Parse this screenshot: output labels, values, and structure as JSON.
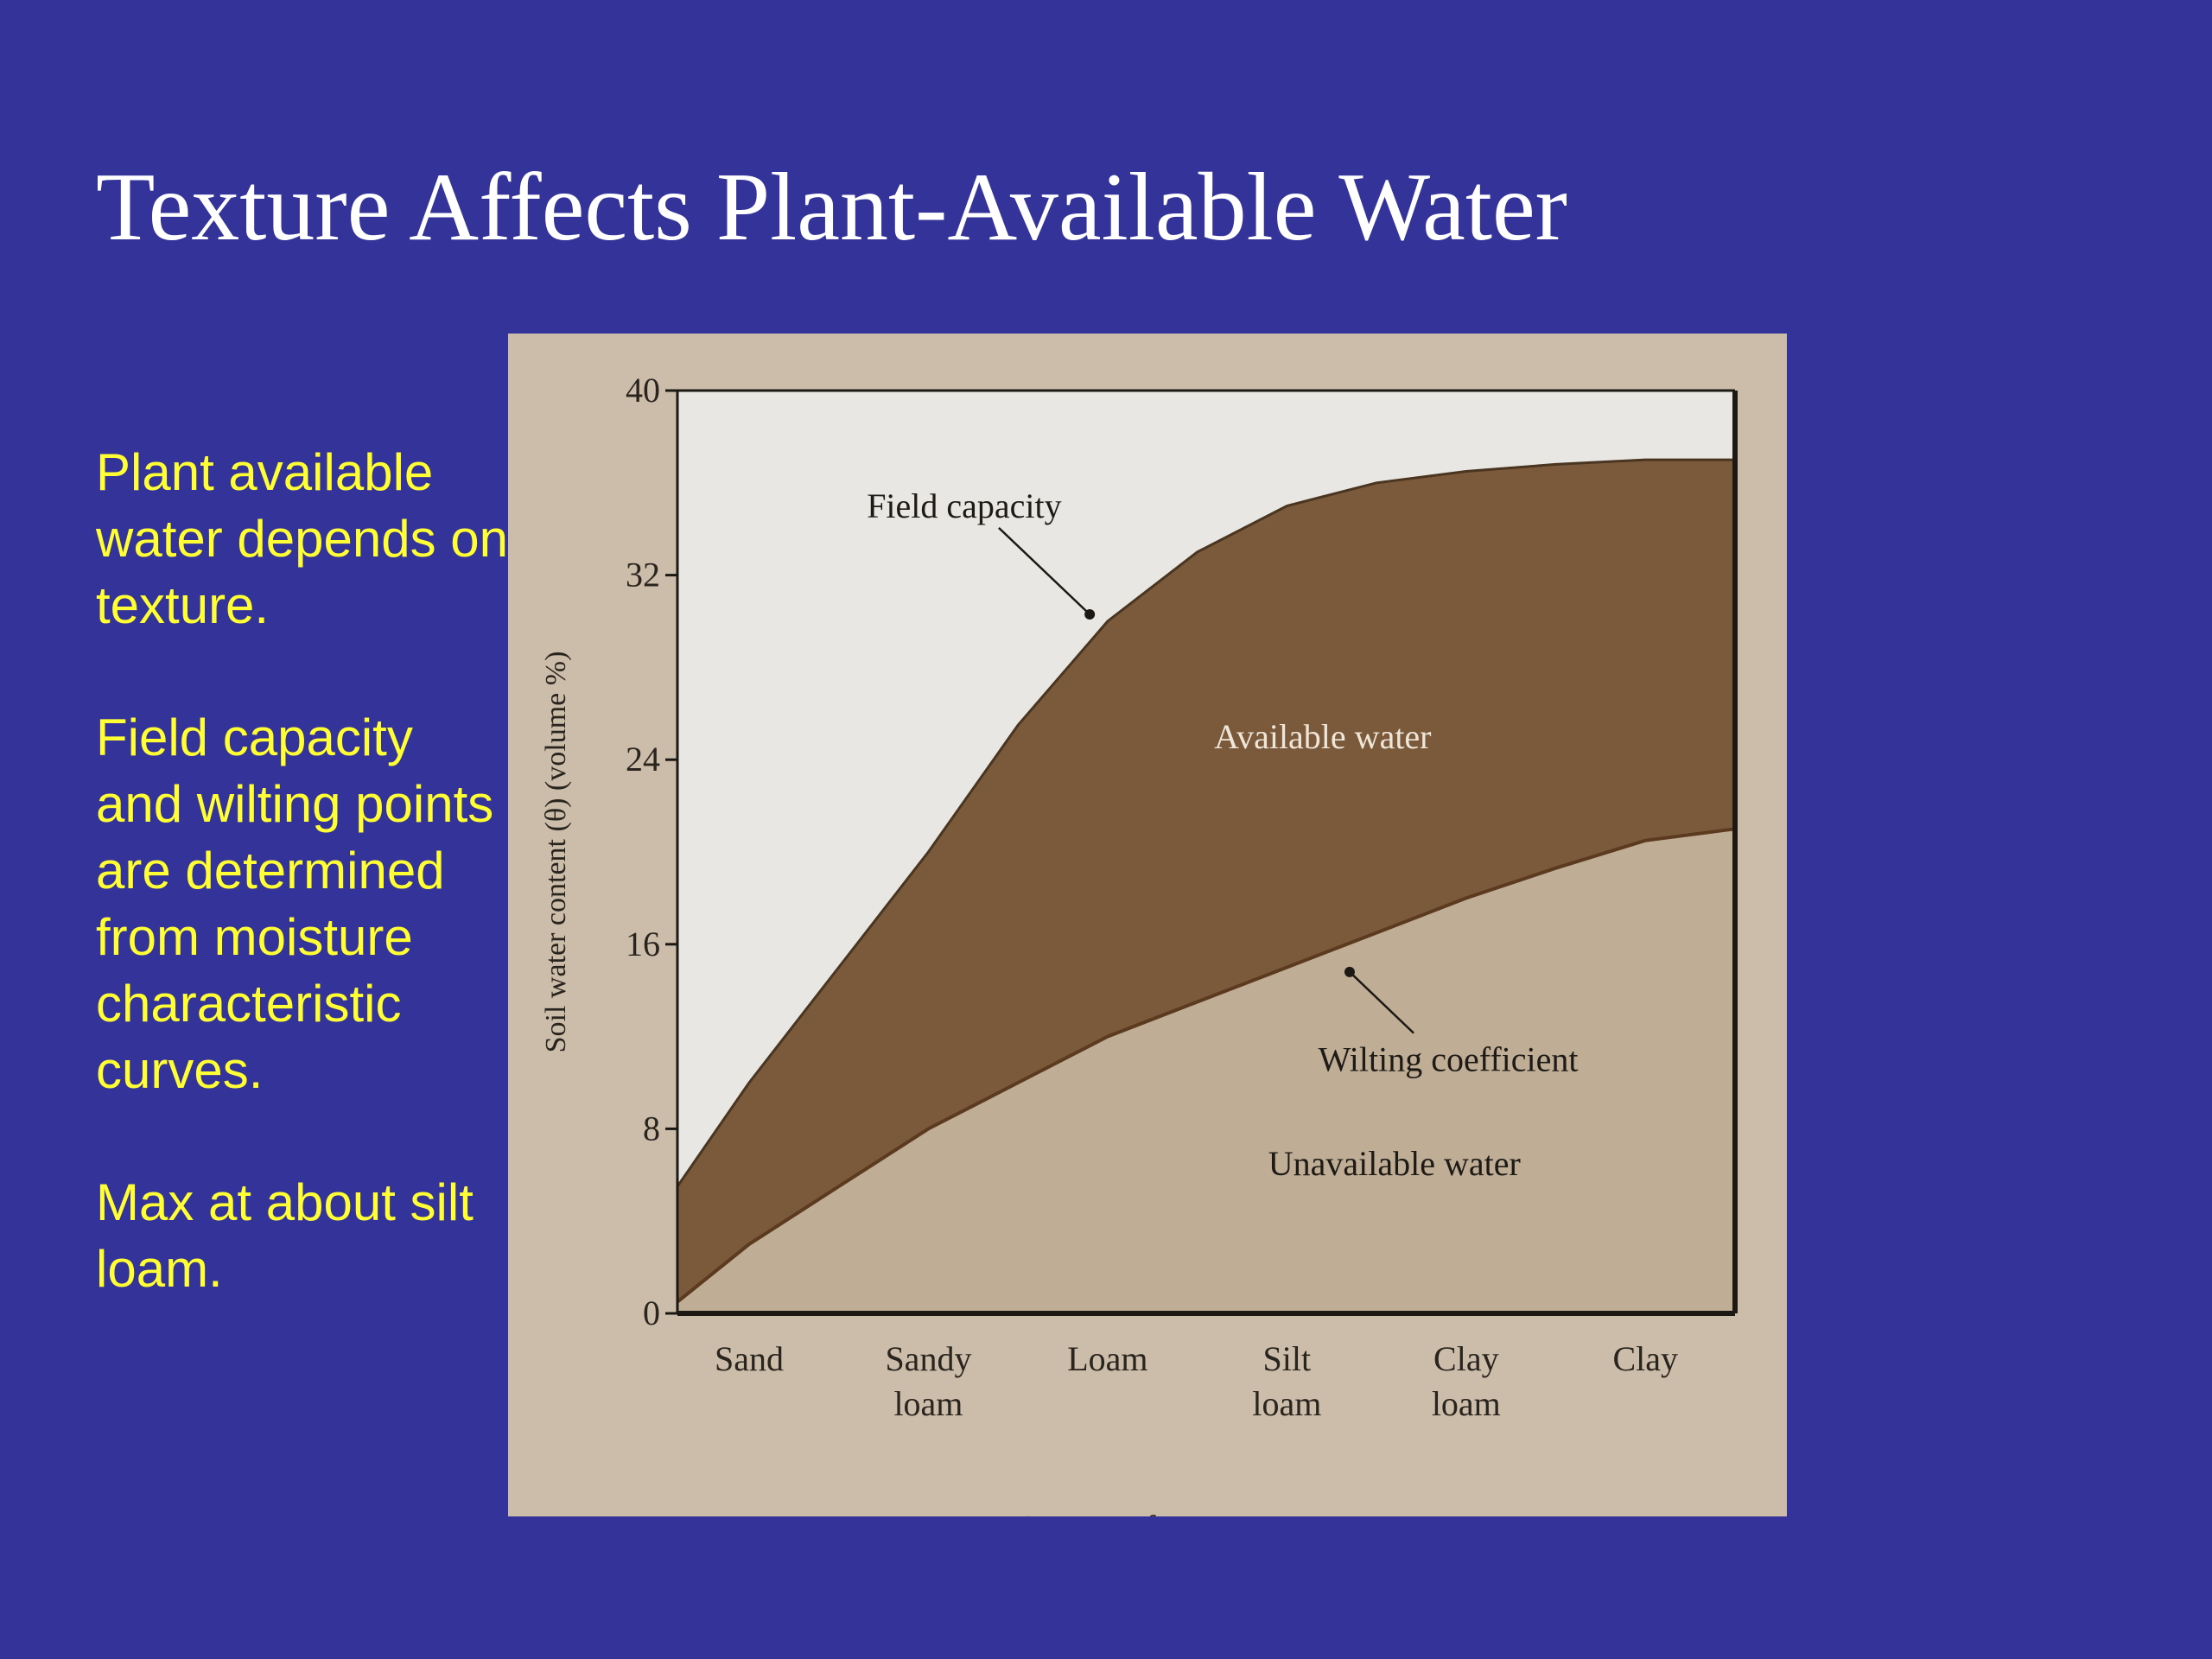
{
  "slide": {
    "title": "Texture Affects Plant-Available Water",
    "bullets": [
      "Plant available water depends on texture.",
      "Field capacity and wilting points are determined from moisture characteristic curves.",
      "Max at about silt loam."
    ]
  },
  "colors": {
    "background": "#343399",
    "title_text": "#ffffff",
    "bullet_text": "#ffff33",
    "panel": "#cbbda9",
    "plot_top": "#e9e7e4",
    "available_band": "#7b5a3c",
    "unavailable_band": "#bfad96"
  },
  "chart_data": {
    "type": "area",
    "categories": [
      "Sand",
      "Sandy loam",
      "Loam",
      "Silt loam",
      "Clay loam",
      "Clay"
    ],
    "category_lines": [
      [
        "Sand"
      ],
      [
        "Sandy",
        "loam"
      ],
      [
        "Loam"
      ],
      [
        "Silt",
        "loam"
      ],
      [
        "Clay",
        "loam"
      ],
      [
        "Clay"
      ]
    ],
    "x_domain": [
      -0.4,
      5.5
    ],
    "ylim": [
      0,
      40
    ],
    "yticks": [
      "0",
      "8",
      "16",
      "24",
      "32",
      "40"
    ],
    "ylabel": "Soil water content (θ) (volume %)",
    "xlabel": "Fineness of texture",
    "series": [
      {
        "name": "Field capacity",
        "x": [
          -0.4,
          0.0,
          0.5,
          1.0,
          1.5,
          2.0,
          2.5,
          3.0,
          3.5,
          4.0,
          4.5,
          5.0,
          5.5
        ],
        "values": [
          5.5,
          10.0,
          15.0,
          20.0,
          25.5,
          30.0,
          33.0,
          35.0,
          36.0,
          36.5,
          36.8,
          37.0,
          37.0
        ]
      },
      {
        "name": "Wilting coefficient",
        "x": [
          -0.4,
          0.0,
          0.5,
          1.0,
          1.5,
          2.0,
          2.5,
          3.0,
          3.5,
          4.0,
          4.5,
          5.0,
          5.5
        ],
        "values": [
          0.5,
          3.0,
          5.5,
          8.0,
          10.0,
          12.0,
          13.5,
          15.0,
          16.5,
          18.0,
          19.3,
          20.5,
          21.0
        ]
      }
    ],
    "annotations": [
      {
        "text": "Field capacity",
        "x": 1.2,
        "y": 34.5,
        "point_x": 1.9,
        "point_y": 30.3
      },
      {
        "text": "Available water",
        "x": 3.2,
        "y": 24.5
      },
      {
        "text": "Wilting coefficient",
        "x": 3.9,
        "y": 10.5,
        "point_x": 3.35,
        "point_y": 14.8
      },
      {
        "text": "Unavailable water",
        "x": 3.6,
        "y": 6.0
      }
    ]
  }
}
